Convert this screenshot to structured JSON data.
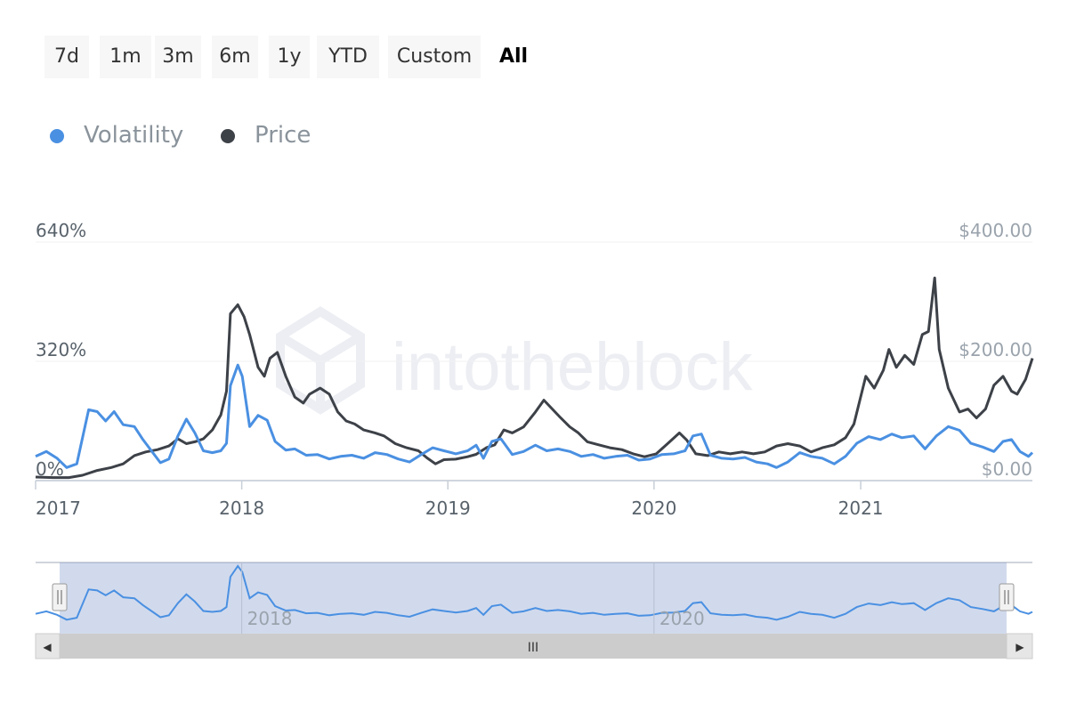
{
  "range_selector": {
    "buttons": [
      "7d",
      "1m",
      "3m",
      "6m",
      "1y",
      "YTD",
      "Custom",
      "All"
    ],
    "active": "All"
  },
  "legend": [
    {
      "label": "Volatility",
      "color": "#4a90e2"
    },
    {
      "label": "Price",
      "color": "#3d4148"
    }
  ],
  "watermark": "intotheblock",
  "navigator": {
    "labels": [
      "2018",
      "2020"
    ],
    "handle_glyph": "ǁ",
    "scrollbar_glyph": "III",
    "left_arrow": "◀",
    "right_arrow": "▶"
  },
  "chart_data": {
    "type": "line",
    "x_range": [
      "2017-01-01",
      "2021-11-01"
    ],
    "x_ticks": [
      "2017",
      "2018",
      "2019",
      "2020",
      "2021"
    ],
    "y_left": {
      "ticks": [
        "0%",
        "320%",
        "640%"
      ],
      "range": [
        0,
        640
      ]
    },
    "y_right": {
      "ticks": [
        "$0.00",
        "$200.00",
        "$400.00"
      ],
      "range": [
        0,
        400
      ]
    },
    "series": [
      {
        "name": "Volatility",
        "axis": "left",
        "color": "#4a90e2",
        "points": [
          [
            "2017-01-01",
            65
          ],
          [
            "2017-01-20",
            78
          ],
          [
            "2017-02-08",
            60
          ],
          [
            "2017-02-25",
            35
          ],
          [
            "2017-03-15",
            45
          ],
          [
            "2017-04-05",
            190
          ],
          [
            "2017-04-20",
            185
          ],
          [
            "2017-05-05",
            160
          ],
          [
            "2017-05-20",
            185
          ],
          [
            "2017-06-05",
            150
          ],
          [
            "2017-06-25",
            145
          ],
          [
            "2017-07-10",
            110
          ],
          [
            "2017-07-25",
            80
          ],
          [
            "2017-08-10",
            48
          ],
          [
            "2017-08-25",
            58
          ],
          [
            "2017-09-10",
            120
          ],
          [
            "2017-09-25",
            165
          ],
          [
            "2017-10-10",
            128
          ],
          [
            "2017-10-25",
            80
          ],
          [
            "2017-11-10",
            75
          ],
          [
            "2017-11-25",
            80
          ],
          [
            "2017-12-05",
            100
          ],
          [
            "2017-12-12",
            255
          ],
          [
            "2017-12-25",
            310
          ],
          [
            "2018-01-02",
            280
          ],
          [
            "2018-01-15",
            145
          ],
          [
            "2018-01-30",
            175
          ],
          [
            "2018-02-15",
            162
          ],
          [
            "2018-03-01",
            105
          ],
          [
            "2018-03-20",
            82
          ],
          [
            "2018-04-05",
            85
          ],
          [
            "2018-04-25",
            68
          ],
          [
            "2018-05-15",
            70
          ],
          [
            "2018-06-05",
            58
          ],
          [
            "2018-06-25",
            65
          ],
          [
            "2018-07-15",
            68
          ],
          [
            "2018-08-05",
            60
          ],
          [
            "2018-08-25",
            75
          ],
          [
            "2018-09-15",
            70
          ],
          [
            "2018-10-05",
            58
          ],
          [
            "2018-10-25",
            50
          ],
          [
            "2018-11-15",
            70
          ],
          [
            "2018-12-05",
            88
          ],
          [
            "2018-12-25",
            80
          ],
          [
            "2019-01-15",
            72
          ],
          [
            "2019-02-05",
            80
          ],
          [
            "2019-02-20",
            95
          ],
          [
            "2019-03-05",
            60
          ],
          [
            "2019-03-20",
            105
          ],
          [
            "2019-04-05",
            112
          ],
          [
            "2019-04-25",
            70
          ],
          [
            "2019-05-15",
            78
          ],
          [
            "2019-06-05",
            95
          ],
          [
            "2019-06-25",
            80
          ],
          [
            "2019-07-15",
            85
          ],
          [
            "2019-08-05",
            78
          ],
          [
            "2019-08-25",
            65
          ],
          [
            "2019-09-15",
            70
          ],
          [
            "2019-10-05",
            60
          ],
          [
            "2019-10-25",
            65
          ],
          [
            "2019-11-15",
            68
          ],
          [
            "2019-12-05",
            55
          ],
          [
            "2019-12-25",
            58
          ],
          [
            "2020-01-15",
            70
          ],
          [
            "2020-02-05",
            72
          ],
          [
            "2020-02-25",
            80
          ],
          [
            "2020-03-10",
            120
          ],
          [
            "2020-03-25",
            125
          ],
          [
            "2020-04-10",
            68
          ],
          [
            "2020-04-30",
            60
          ],
          [
            "2020-05-20",
            58
          ],
          [
            "2020-06-10",
            62
          ],
          [
            "2020-06-30",
            50
          ],
          [
            "2020-07-20",
            45
          ],
          [
            "2020-08-05",
            35
          ],
          [
            "2020-08-25",
            50
          ],
          [
            "2020-09-15",
            75
          ],
          [
            "2020-10-05",
            65
          ],
          [
            "2020-10-25",
            60
          ],
          [
            "2020-11-15",
            45
          ],
          [
            "2020-12-05",
            65
          ],
          [
            "2020-12-25",
            100
          ],
          [
            "2021-01-15",
            118
          ],
          [
            "2021-02-05",
            110
          ],
          [
            "2021-02-25",
            125
          ],
          [
            "2021-03-15",
            115
          ],
          [
            "2021-04-05",
            120
          ],
          [
            "2021-04-25",
            85
          ],
          [
            "2021-05-15",
            120
          ],
          [
            "2021-06-05",
            145
          ],
          [
            "2021-06-25",
            135
          ],
          [
            "2021-07-15",
            100
          ],
          [
            "2021-08-05",
            90
          ],
          [
            "2021-08-25",
            78
          ],
          [
            "2021-09-10",
            105
          ],
          [
            "2021-09-25",
            110
          ],
          [
            "2021-10-10",
            78
          ],
          [
            "2021-10-25",
            65
          ],
          [
            "2021-11-01",
            75
          ]
        ]
      },
      {
        "name": "Price",
        "axis": "right",
        "color": "#3d4148",
        "points": [
          [
            "2017-01-01",
            6
          ],
          [
            "2017-02-01",
            5
          ],
          [
            "2017-03-01",
            5
          ],
          [
            "2017-03-25",
            9
          ],
          [
            "2017-04-20",
            17
          ],
          [
            "2017-05-15",
            22
          ],
          [
            "2017-06-05",
            28
          ],
          [
            "2017-06-25",
            42
          ],
          [
            "2017-07-15",
            48
          ],
          [
            "2017-08-05",
            52
          ],
          [
            "2017-08-25",
            58
          ],
          [
            "2017-09-10",
            70
          ],
          [
            "2017-09-25",
            62
          ],
          [
            "2017-10-10",
            65
          ],
          [
            "2017-10-25",
            70
          ],
          [
            "2017-11-10",
            85
          ],
          [
            "2017-11-25",
            110
          ],
          [
            "2017-12-05",
            150
          ],
          [
            "2017-12-12",
            280
          ],
          [
            "2017-12-25",
            295
          ],
          [
            "2018-01-05",
            275
          ],
          [
            "2018-01-15",
            245
          ],
          [
            "2018-01-30",
            190
          ],
          [
            "2018-02-10",
            175
          ],
          [
            "2018-02-20",
            205
          ],
          [
            "2018-03-05",
            215
          ],
          [
            "2018-03-20",
            175
          ],
          [
            "2018-04-05",
            140
          ],
          [
            "2018-04-20",
            130
          ],
          [
            "2018-05-01",
            145
          ],
          [
            "2018-05-20",
            155
          ],
          [
            "2018-06-05",
            145
          ],
          [
            "2018-06-20",
            115
          ],
          [
            "2018-07-05",
            100
          ],
          [
            "2018-07-20",
            95
          ],
          [
            "2018-08-05",
            85
          ],
          [
            "2018-08-25",
            80
          ],
          [
            "2018-09-10",
            75
          ],
          [
            "2018-09-30",
            62
          ],
          [
            "2018-10-20",
            55
          ],
          [
            "2018-11-10",
            50
          ],
          [
            "2018-11-25",
            38
          ],
          [
            "2018-12-10",
            28
          ],
          [
            "2018-12-25",
            35
          ],
          [
            "2019-01-15",
            36
          ],
          [
            "2019-02-05",
            40
          ],
          [
            "2019-02-20",
            44
          ],
          [
            "2019-03-10",
            55
          ],
          [
            "2019-03-25",
            60
          ],
          [
            "2019-04-10",
            85
          ],
          [
            "2019-04-25",
            80
          ],
          [
            "2019-05-15",
            90
          ],
          [
            "2019-06-05",
            115
          ],
          [
            "2019-06-20",
            135
          ],
          [
            "2019-07-05",
            120
          ],
          [
            "2019-07-20",
            105
          ],
          [
            "2019-08-05",
            90
          ],
          [
            "2019-08-20",
            80
          ],
          [
            "2019-09-05",
            65
          ],
          [
            "2019-09-25",
            60
          ],
          [
            "2019-10-15",
            55
          ],
          [
            "2019-11-05",
            52
          ],
          [
            "2019-11-25",
            45
          ],
          [
            "2019-12-15",
            40
          ],
          [
            "2020-01-05",
            45
          ],
          [
            "2020-01-25",
            62
          ],
          [
            "2020-02-15",
            80
          ],
          [
            "2020-02-28",
            68
          ],
          [
            "2020-03-15",
            45
          ],
          [
            "2020-04-05",
            42
          ],
          [
            "2020-04-25",
            48
          ],
          [
            "2020-05-15",
            45
          ],
          [
            "2020-06-05",
            48
          ],
          [
            "2020-06-25",
            45
          ],
          [
            "2020-07-15",
            48
          ],
          [
            "2020-08-05",
            58
          ],
          [
            "2020-08-25",
            62
          ],
          [
            "2020-09-15",
            58
          ],
          [
            "2020-10-05",
            48
          ],
          [
            "2020-10-25",
            55
          ],
          [
            "2020-11-15",
            60
          ],
          [
            "2020-12-05",
            72
          ],
          [
            "2020-12-20",
            95
          ],
          [
            "2021-01-10",
            175
          ],
          [
            "2021-01-25",
            155
          ],
          [
            "2021-02-10",
            185
          ],
          [
            "2021-02-20",
            220
          ],
          [
            "2021-03-05",
            190
          ],
          [
            "2021-03-20",
            210
          ],
          [
            "2021-04-05",
            195
          ],
          [
            "2021-04-20",
            245
          ],
          [
            "2021-05-01",
            250
          ],
          [
            "2021-05-12",
            340
          ],
          [
            "2021-05-20",
            220
          ],
          [
            "2021-06-05",
            155
          ],
          [
            "2021-06-25",
            115
          ],
          [
            "2021-07-10",
            120
          ],
          [
            "2021-07-25",
            105
          ],
          [
            "2021-08-10",
            120
          ],
          [
            "2021-08-25",
            160
          ],
          [
            "2021-09-10",
            175
          ],
          [
            "2021-09-25",
            150
          ],
          [
            "2021-10-05",
            145
          ],
          [
            "2021-10-20",
            170
          ],
          [
            "2021-11-01",
            205
          ]
        ]
      }
    ],
    "legend_position": "top-left",
    "grid": "horizontal"
  }
}
